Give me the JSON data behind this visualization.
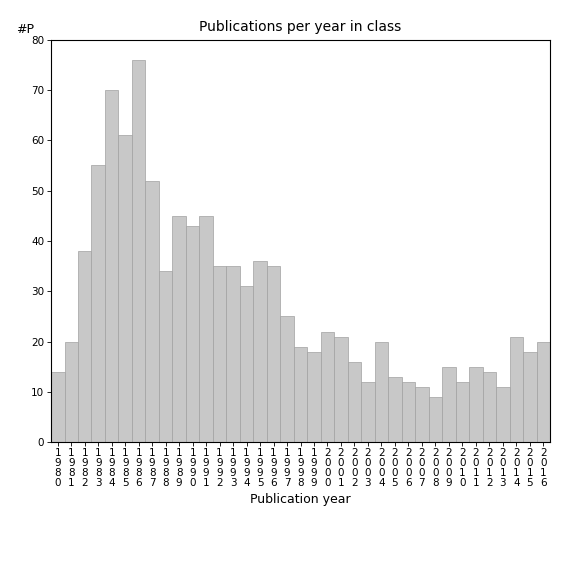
{
  "title": "Publications per year in class",
  "xlabel": "Publication year",
  "ylabel": "#P",
  "years": [
    "1980",
    "1981",
    "1982",
    "1983",
    "1984",
    "1985",
    "1986",
    "1987",
    "1988",
    "1989",
    "1990",
    "1991",
    "1992",
    "1993",
    "1994",
    "1995",
    "1996",
    "1997",
    "1998",
    "1999",
    "2000",
    "2001",
    "2002",
    "2003",
    "2004",
    "2005",
    "2006",
    "2007",
    "2008",
    "2009",
    "2010",
    "2011",
    "2012",
    "2013",
    "2014",
    "2015",
    "2016"
  ],
  "values": [
    14,
    20,
    38,
    55,
    70,
    61,
    76,
    52,
    34,
    45,
    43,
    45,
    35,
    35,
    31,
    36,
    35,
    25,
    19,
    18,
    22,
    21,
    16,
    12,
    20,
    13,
    12,
    11,
    9,
    15,
    12,
    15,
    14,
    11,
    21,
    18,
    20
  ],
  "bar_color": "#c8c8c8",
  "bar_edge_color": "#a0a0a0",
  "ylim": [
    0,
    80
  ],
  "yticks": [
    0,
    10,
    20,
    30,
    40,
    50,
    60,
    70,
    80
  ],
  "background_color": "#ffffff",
  "title_fontsize": 10,
  "label_fontsize": 9,
  "tick_fontsize": 7.5
}
